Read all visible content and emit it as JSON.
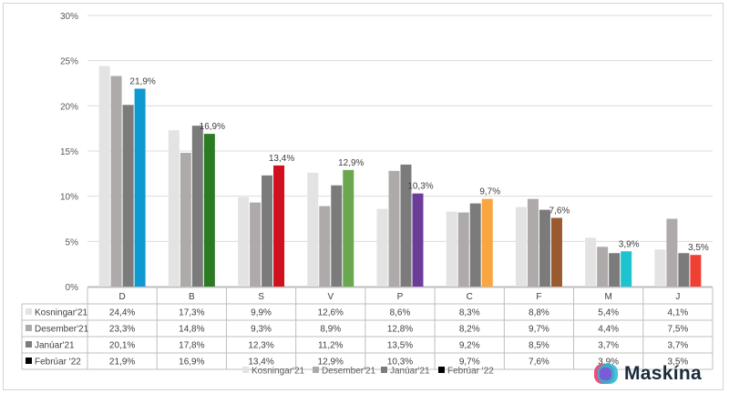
{
  "chart_data": {
    "type": "bar",
    "title": "",
    "xlabel": "",
    "ylabel": "",
    "ylim": [
      0,
      30
    ],
    "yticks": [
      "0%",
      "5%",
      "10%",
      "15%",
      "20%",
      "25%",
      "30%"
    ],
    "categories": [
      "D",
      "B",
      "S",
      "V",
      "P",
      "C",
      "F",
      "M",
      "J"
    ],
    "series": [
      {
        "name": "Kosningar'21",
        "color": "#e3e3e3",
        "values": [
          24.4,
          17.3,
          9.9,
          12.6,
          8.6,
          8.3,
          8.8,
          5.4,
          4.1
        ],
        "labels": [
          "24,4%",
          "17,3%",
          "9,9%",
          "12,6%",
          "8,6%",
          "8,3%",
          "8,8%",
          "5,4%",
          "4,1%"
        ]
      },
      {
        "name": "Desember'21",
        "color": "#aeaaaa",
        "values": [
          23.3,
          14.8,
          9.3,
          8.9,
          12.8,
          8.2,
          9.7,
          4.4,
          7.5
        ],
        "labels": [
          "23,3%",
          "14,8%",
          "9,3%",
          "8,9%",
          "12,8%",
          "8,2%",
          "9,7%",
          "4,4%",
          "7,5%"
        ]
      },
      {
        "name": "Janúar'21",
        "color": "#7b7b7b",
        "values": [
          20.1,
          17.8,
          12.3,
          11.2,
          13.5,
          9.2,
          8.5,
          3.7,
          3.7
        ],
        "labels": [
          "20,1%",
          "17,8%",
          "12,3%",
          "11,2%",
          "13,5%",
          "9,2%",
          "8,5%",
          "3,7%",
          "3,7%"
        ]
      },
      {
        "name": "Febrúar '22",
        "color": "#000000",
        "values": [
          21.9,
          16.9,
          13.4,
          12.9,
          10.3,
          9.7,
          7.6,
          3.9,
          3.5
        ],
        "labels": [
          "21,9%",
          "16,9%",
          "13,4%",
          "12,9%",
          "10,3%",
          "9,7%",
          "7,6%",
          "3,9%",
          "3,5%"
        ]
      }
    ],
    "party_colors": [
      "#0d9ad0",
      "#2a7b22",
      "#d0101d",
      "#6aa84f",
      "#6b3c98",
      "#f9a540",
      "#9a5a30",
      "#1ec3d0",
      "#ef4034"
    ],
    "legend_position": "bottom",
    "table_below": true
  },
  "brand": {
    "name": "Maskína",
    "colors": [
      "#f04e7a",
      "#25b9d4",
      "#7a5cd6"
    ]
  }
}
